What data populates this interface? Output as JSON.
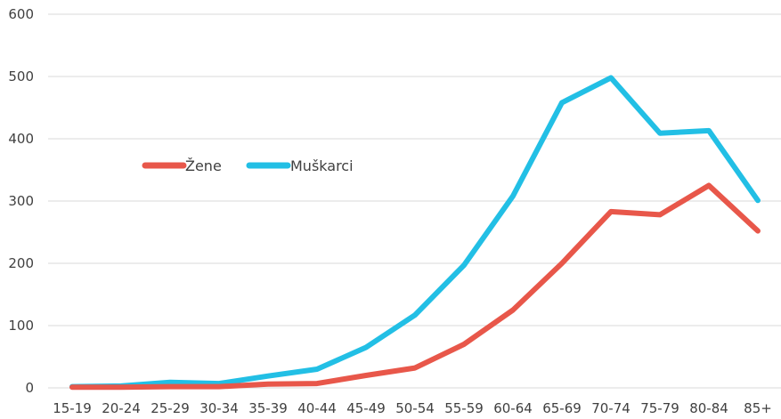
{
  "chart_data": {
    "type": "line",
    "categories": [
      "15-19",
      "20-24",
      "25-29",
      "30-34",
      "35-39",
      "40-44",
      "45-49",
      "50-54",
      "55-59",
      "60-64",
      "65-69",
      "70-74",
      "75-79",
      "80-84",
      "85+"
    ],
    "series": [
      {
        "name": "Žene",
        "color": "#e8574a",
        "values": [
          1,
          1,
          2,
          2,
          6,
          7,
          20,
          32,
          70,
          125,
          200,
          283,
          278,
          325,
          252
        ]
      },
      {
        "name": "Muškarci",
        "color": "#22bfe5",
        "values": [
          2,
          3,
          9,
          7,
          19,
          30,
          65,
          117,
          197,
          308,
          458,
          498,
          409,
          413,
          301
        ]
      }
    ],
    "y_ticks": [
      "0",
      "100",
      "200",
      "300",
      "400",
      "500",
      "600"
    ],
    "ylim": [
      0,
      600
    ],
    "grid": true,
    "legend_position": "center-left",
    "title": "",
    "xlabel": "",
    "ylabel": ""
  }
}
